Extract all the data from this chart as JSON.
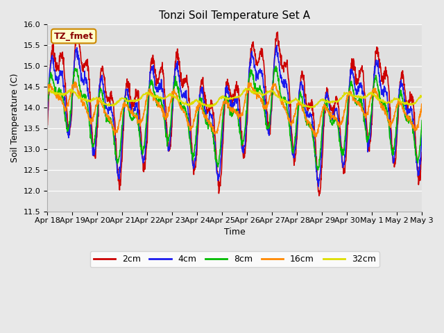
{
  "title": "Tonzi Soil Temperature Set A",
  "xlabel": "Time",
  "ylabel": "Soil Temperature (C)",
  "ylim": [
    11.5,
    16.0
  ],
  "annotation": "TZ_fmet",
  "legend_entries": [
    "2cm",
    "4cm",
    "8cm",
    "16cm",
    "32cm"
  ],
  "line_colors": [
    "#cc0000",
    "#1a1aee",
    "#00bb00",
    "#ff8800",
    "#dddd00"
  ],
  "xtick_labels": [
    "Apr 18",
    "Apr 19",
    "Apr 20",
    "Apr 21",
    "Apr 22",
    "Apr 23",
    "Apr 24",
    "Apr 25",
    "Apr 26",
    "Apr 27",
    "Apr 28",
    "Apr 29",
    "Apr 30",
    "May 1",
    "May 2",
    "May 3"
  ],
  "ytick_vals": [
    11.5,
    12.0,
    12.5,
    13.0,
    13.5,
    14.0,
    14.5,
    15.0,
    15.5,
    16.0
  ],
  "fig_bg": "#e8e8e8",
  "ax_bg": "#e0e0e0",
  "grid_color": "#ffffff",
  "annotation_fg": "#8b0000",
  "annotation_bg": "#ffffcc",
  "annotation_edge": "#cc8800"
}
